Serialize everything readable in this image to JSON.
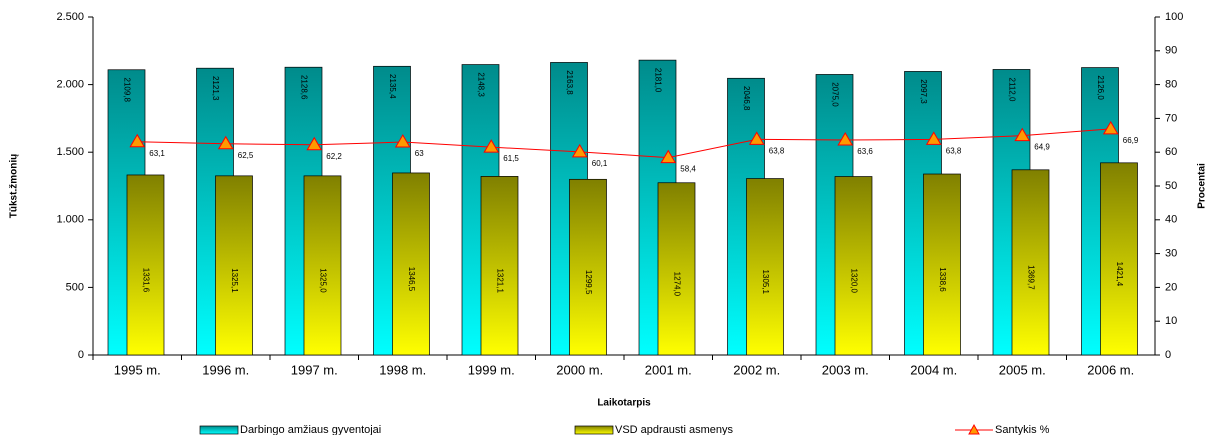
{
  "chart_data": {
    "type": "bar",
    "categories": [
      "1995 m.",
      "1996 m.",
      "1997 m.",
      "1998 m.",
      "1999 m.",
      "2000 m.",
      "2001 m.",
      "2002 m.",
      "2003 m.",
      "2004 m.",
      "2005 m.",
      "2006 m."
    ],
    "series": [
      {
        "name": "Darbingo amžiaus gyventojai",
        "color": "#008b8b",
        "values": [
          2109.8,
          2121.3,
          2128.6,
          2135.4,
          2148.3,
          2163.8,
          2181.0,
          2046.8,
          2075.0,
          2097.3,
          2112.0,
          2126.0
        ],
        "value_labels": [
          "2109,8",
          "2121,3",
          "2128,6",
          "2135,4",
          "2148,3",
          "2163,8",
          "2181,0",
          "2046,8",
          "2075,0",
          "2097,3",
          "2112,0",
          "2126,0"
        ]
      },
      {
        "name": "VSD apdrausti asmenys",
        "color": "#808000",
        "values": [
          1331.6,
          1325.1,
          1325.0,
          1346.5,
          1321.1,
          1299.5,
          1274.0,
          1305.1,
          1320.0,
          1338.6,
          1369.7,
          1421.4
        ],
        "value_labels": [
          "1331,6",
          "1325,1",
          "1325,0",
          "1346,5",
          "1321,1",
          "1299,5",
          "1274,0",
          "1305,1",
          "1320,0",
          "1338,6",
          "1369,7",
          "1421,4"
        ]
      },
      {
        "name": "Santykis %",
        "color": "#ff0000",
        "type": "line",
        "axis": "y2",
        "values": [
          63.1,
          62.5,
          62.2,
          63,
          61.5,
          60.1,
          58.4,
          63.8,
          63.6,
          63.8,
          64.9,
          66.9
        ],
        "value_labels": [
          "63,1",
          "62,5",
          "62,2",
          "63",
          "61,5",
          "60,1",
          "58,4",
          "63,8",
          "63,6",
          "63,8",
          "64,9",
          "66,9"
        ]
      }
    ],
    "xlabel": "Laikotarpis",
    "ylabel": "Tūkst.žmonių",
    "y2label": "Procentai",
    "ylim": [
      0,
      2500
    ],
    "yticks": [
      0,
      500,
      {
        "value": 1000,
        "label": "1.000"
      },
      {
        "value": 1500,
        "label": "1.500"
      },
      {
        "value": 2000,
        "label": "2.000"
      },
      {
        "value": 2500,
        "label": "2.500"
      }
    ],
    "y2lim": [
      0,
      100
    ],
    "y2ticks": [
      0,
      10,
      20,
      30,
      40,
      50,
      60,
      70,
      80,
      90,
      100
    ],
    "legend": "bottom"
  }
}
